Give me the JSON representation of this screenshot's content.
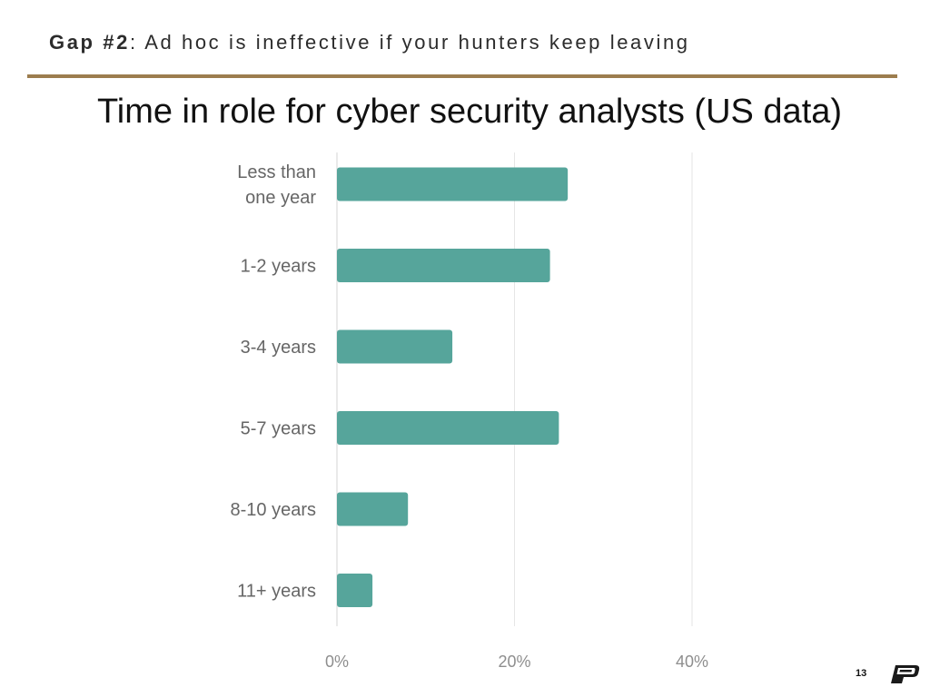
{
  "slide": {
    "heading_bold": "Gap #2",
    "heading_rest": ": Ad hoc is ineffective if your hunters keep leaving",
    "page_number": "13",
    "logo": "purdue-p-logo",
    "rule_color": "#9c7d4e"
  },
  "chart_data": {
    "type": "bar",
    "orientation": "horizontal",
    "title": "Time in role for cyber security analysts (US data)",
    "xlabel": "",
    "ylabel": "",
    "categories": [
      "Less than\none year",
      "1-2 years",
      "3-4 years",
      "5-7 years",
      "8-10 years",
      "11+ years"
    ],
    "values": [
      26,
      24,
      13,
      25,
      8,
      4
    ],
    "unit": "%",
    "xlim": [
      0,
      40
    ],
    "x_ticks": [
      "0%",
      "20%",
      "40%"
    ],
    "grid": "vertical",
    "bar_color": "#56a59b"
  }
}
